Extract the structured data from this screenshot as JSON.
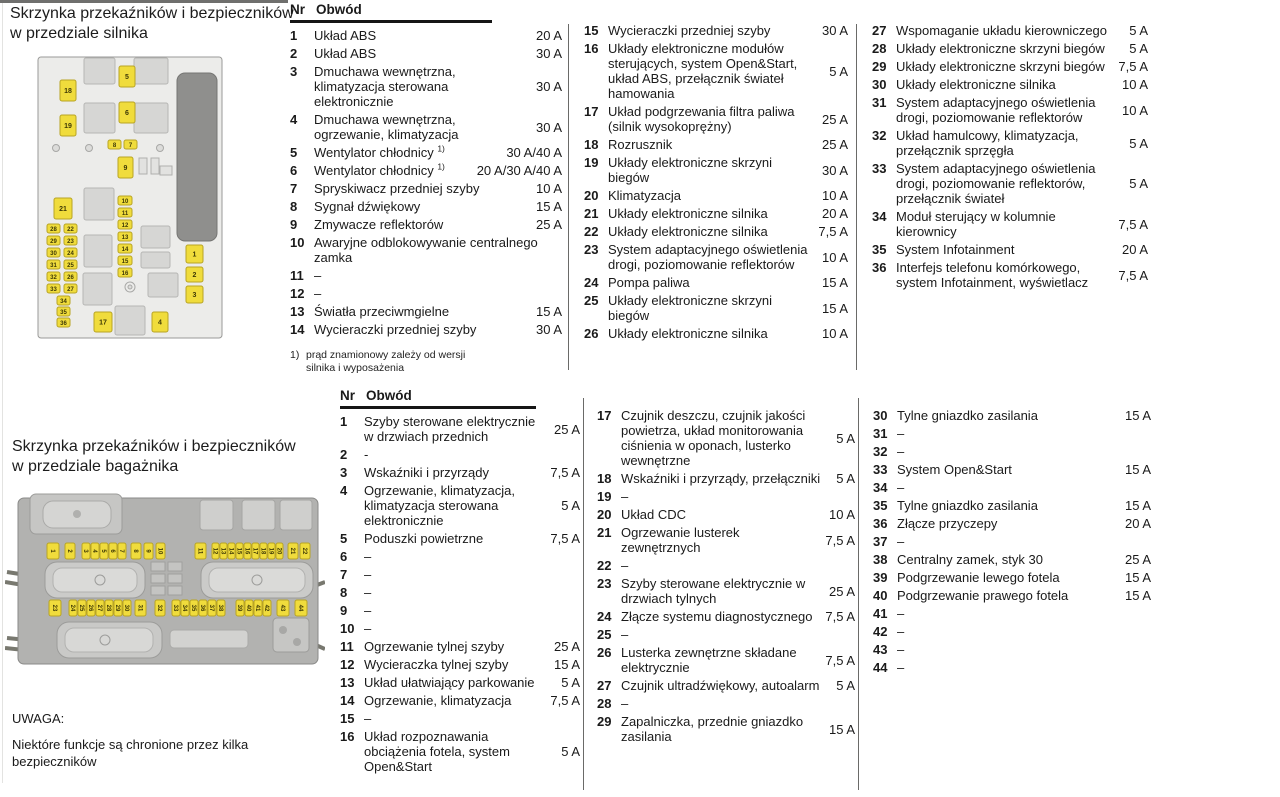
{
  "engine": {
    "title": "Skrzynka przekaźników i bezpieczników w przedziale silnika",
    "header": {
      "nr": "Nr",
      "circuit": "Obwód"
    },
    "footnote_marker": "1)",
    "footnote_text": "prąd znamionowy zależy od wersji silnika i wyposażenia",
    "columns": [
      [
        {
          "nr": "1",
          "label": "Układ ABS",
          "amp": "20 A"
        },
        {
          "nr": "2",
          "label": "Układ ABS",
          "amp": "30 A"
        },
        {
          "nr": "3",
          "label": "Dmuchawa wewnętrzna, klimatyzacja sterowana elektronicznie",
          "amp": "30 A"
        },
        {
          "nr": "4",
          "label": "Dmuchawa wewnętrzna, ogrzewanie, klimatyzacja",
          "amp": "30 A"
        },
        {
          "nr": "5",
          "label": "Wentylator chłodnicy ",
          "sup": "1)",
          "amp": "30 A/40 A"
        },
        {
          "nr": "6",
          "label": "Wentylator chłodnicy ",
          "sup": "1)",
          "amp": "20 A/30 A/40 A"
        },
        {
          "nr": "7",
          "label": "Spryskiwacz przedniej szyby",
          "amp": "10 A"
        },
        {
          "nr": "8",
          "label": "Sygnał dźwiękowy",
          "amp": "15 A"
        },
        {
          "nr": "9",
          "label": "Zmywacze reflektorów",
          "amp": "25 A"
        },
        {
          "nr": "10",
          "label": "Awaryjne odblokowywanie centralnego zamka",
          "amp": ""
        },
        {
          "nr": "11",
          "label": "–",
          "amp": ""
        },
        {
          "nr": "12",
          "label": "–",
          "amp": ""
        },
        {
          "nr": "13",
          "label": "Światła przeciwmgielne",
          "amp": "15 A"
        },
        {
          "nr": "14",
          "label": "Wycieraczki przedniej szyby",
          "amp": "30 A"
        }
      ],
      [
        {
          "nr": "15",
          "label": "Wycieraczki przedniej szyby",
          "amp": "30 A"
        },
        {
          "nr": "16",
          "label": "Układy elektroniczne modułów sterujących, system Open&Start, układ ABS, przełącznik świateł hamowania",
          "amp": "5 A"
        },
        {
          "nr": "17",
          "label": "Układ podgrzewania filtra paliwa (silnik wysokoprężny)",
          "amp": "25 A"
        },
        {
          "nr": "18",
          "label": "Rozrusznik",
          "amp": "25 A"
        },
        {
          "nr": "19",
          "label": "Układy elektroniczne skrzyni biegów",
          "amp": "30 A"
        },
        {
          "nr": "20",
          "label": "Klimatyzacja",
          "amp": "10 A"
        },
        {
          "nr": "21",
          "label": "Układy elektroniczne silnika",
          "amp": "20 A"
        },
        {
          "nr": "22",
          "label": "Układy elektroniczne silnika",
          "amp": "7,5 A"
        },
        {
          "nr": "23",
          "label": "System adaptacyjnego oświetlenia drogi, poziomowanie reflektorów",
          "amp": "10 A"
        },
        {
          "nr": "24",
          "label": "Pompa paliwa",
          "amp": "15 A"
        },
        {
          "nr": "25",
          "label": "Układy elektroniczne skrzyni biegów",
          "amp": "15 A"
        },
        {
          "nr": "26",
          "label": "Układy elektroniczne silnika",
          "amp": "10 A"
        }
      ],
      [
        {
          "nr": "27",
          "label": "Wspomaganie układu kierowniczego",
          "amp": "5 A"
        },
        {
          "nr": "28",
          "label": "Układy elektroniczne skrzyni biegów",
          "amp": "5 A"
        },
        {
          "nr": "29",
          "label": "Układy elektroniczne skrzyni biegów",
          "amp": "7,5 A"
        },
        {
          "nr": "30",
          "label": "Układy elektroniczne silnika",
          "amp": "10 A"
        },
        {
          "nr": "31",
          "label": "System adaptacyjnego oświetlenia drogi, poziomowanie reflektorów",
          "amp": "10 A"
        },
        {
          "nr": "32",
          "label": "Układ hamulcowy, klimatyzacja, przełącznik sprzęgła",
          "amp": "5 A"
        },
        {
          "nr": "33",
          "label": "System adaptacyjnego oświetlenia drogi, poziomowanie reflektorów, przełącznik świateł",
          "amp": "5 A"
        },
        {
          "nr": "34",
          "label": "Moduł sterujący w kolumnie kierownicy",
          "amp": "7,5 A"
        },
        {
          "nr": "35",
          "label": "System Infotainment",
          "amp": "20 A"
        },
        {
          "nr": "36",
          "label": "Interfejs telefonu komórkowego, system Infotainment, wyświetlacz",
          "amp": "7,5 A"
        }
      ]
    ]
  },
  "trunk": {
    "title": "Skrzynka przekaźników i bezpieczników w przedziale bagażnika",
    "header": {
      "nr": "Nr",
      "circuit": "Obwód"
    },
    "note_title": "UWAGA:",
    "note_body": "Niektóre funkcje są chronione przez kilka bezpieczników",
    "columns": [
      [
        {
          "nr": "1",
          "label": "Szyby sterowane elektrycznie w drzwiach przednich",
          "amp": "25 A"
        },
        {
          "nr": "2",
          "label": "-",
          "amp": ""
        },
        {
          "nr": "3",
          "label": "Wskaźniki i przyrządy",
          "amp": "7,5 A"
        },
        {
          "nr": "4",
          "label": "Ogrzewanie, klimatyzacja, klimatyzacja sterowana elektronicznie",
          "amp": "5 A"
        },
        {
          "nr": "5",
          "label": "Poduszki powietrzne",
          "amp": "7,5 A"
        },
        {
          "nr": "6",
          "label": "–",
          "amp": ""
        },
        {
          "nr": "7",
          "label": "–",
          "amp": ""
        },
        {
          "nr": "8",
          "label": "–",
          "amp": ""
        },
        {
          "nr": "9",
          "label": "–",
          "amp": ""
        },
        {
          "nr": "10",
          "label": "–",
          "amp": ""
        },
        {
          "nr": "11",
          "label": "Ogrzewanie tylnej szyby",
          "amp": "25 A"
        },
        {
          "nr": "12",
          "label": "Wycieraczka tylnej szyby",
          "amp": "15 A"
        },
        {
          "nr": "13",
          "label": "Układ ułatwiający parkowanie",
          "amp": "5 A"
        },
        {
          "nr": "14",
          "label": "Ogrzewanie, klimatyzacja",
          "amp": "7,5 A"
        },
        {
          "nr": "15",
          "label": "–",
          "amp": ""
        },
        {
          "nr": "16",
          "label": "Układ rozpoznawania obciążenia fotela, system Open&Start",
          "amp": "5 A"
        }
      ],
      [
        {
          "nr": "17",
          "label": "Czujnik deszczu, czujnik jakości powietrza, układ monitorowania ciśnienia w oponach, lusterko wewnętrzne",
          "amp": "5 A"
        },
        {
          "nr": "18",
          "label": "Wskaźniki i przyrządy, przełączniki",
          "amp": "5 A"
        },
        {
          "nr": "19",
          "label": "–",
          "amp": ""
        },
        {
          "nr": "20",
          "label": "Układ CDC",
          "amp": "10 A"
        },
        {
          "nr": "21",
          "label": "Ogrzewanie lusterek zewnętrznych",
          "amp": "7,5 A"
        },
        {
          "nr": "22",
          "label": "–",
          "amp": ""
        },
        {
          "nr": "23",
          "label": "Szyby sterowane elektrycznie w drzwiach tylnych",
          "amp": "25 A"
        },
        {
          "nr": "24",
          "label": "Złącze systemu diagnostycznego",
          "amp": "7,5 A"
        },
        {
          "nr": "25",
          "label": "–",
          "amp": ""
        },
        {
          "nr": "26",
          "label": "Lusterka zewnętrzne składane elektrycznie",
          "amp": "7,5 A"
        },
        {
          "nr": "27",
          "label": "Czujnik ultradźwiękowy, autoalarm",
          "amp": "5 A"
        },
        {
          "nr": "28",
          "label": "–",
          "amp": ""
        },
        {
          "nr": "29",
          "label": "Zapalniczka, przednie gniazdko zasilania",
          "amp": "15 A"
        }
      ],
      [
        {
          "nr": "30",
          "label": "Tylne gniazdko zasilania",
          "amp": "15 A"
        },
        {
          "nr": "31",
          "label": "–",
          "amp": ""
        },
        {
          "nr": "32",
          "label": "–",
          "amp": ""
        },
        {
          "nr": "33",
          "label": "System Open&Start",
          "amp": "15 A"
        },
        {
          "nr": "34",
          "label": "–",
          "amp": ""
        },
        {
          "nr": "35",
          "label": "Tylne gniazdko zasilania",
          "amp": "15 A"
        },
        {
          "nr": "36",
          "label": "Złącze przyczepy",
          "amp": "20 A"
        },
        {
          "nr": "37",
          "label": "–",
          "amp": ""
        },
        {
          "nr": "38",
          "label": "Centralny zamek, styk 30",
          "amp": "25 A"
        },
        {
          "nr": "39",
          "label": "Podgrzewanie lewego fotela",
          "amp": "15 A"
        },
        {
          "nr": "40",
          "label": "Podgrzewanie prawego fotela",
          "amp": "15 A"
        },
        {
          "nr": "41",
          "label": "–",
          "amp": ""
        },
        {
          "nr": "42",
          "label": "–",
          "amp": ""
        },
        {
          "nr": "43",
          "label": "–",
          "amp": ""
        },
        {
          "nr": "44",
          "label": "–",
          "amp": ""
        }
      ]
    ]
  },
  "engine_diagram": {
    "fuse_numbers": [
      "18",
      "19",
      "5",
      "6",
      "8",
      "7",
      "9",
      "21",
      "28",
      "22",
      "29",
      "23",
      "30",
      "24",
      "31",
      "25",
      "32",
      "26",
      "33",
      "27",
      "34",
      "35",
      "36",
      "10",
      "11",
      "12",
      "13",
      "14",
      "15",
      "16",
      "1",
      "2",
      "3",
      "17",
      "4"
    ]
  },
  "trunk_diagram": {
    "top_row": [
      "1",
      "2",
      "3",
      "4",
      "5",
      "6",
      "7",
      "8",
      "9",
      "10",
      "11",
      "12",
      "13",
      "14",
      "15",
      "16",
      "17",
      "18",
      "19",
      "20",
      "21",
      "22"
    ],
    "bottom_row": [
      "23",
      "24",
      "25",
      "26",
      "27",
      "28",
      "29",
      "30",
      "31",
      "32",
      "33",
      "34",
      "35",
      "36",
      "37",
      "38",
      "39",
      "40",
      "41",
      "42",
      "43",
      "44"
    ]
  },
  "colors": {
    "fuse_yellow": "#f0dc3c",
    "fuse_border": "#b8a424",
    "fuse_text": "#3d3805",
    "panel_gray": "#ececea",
    "relay_gray": "#d6d6d4",
    "trunk_box_gray": "#b2b2b0"
  }
}
